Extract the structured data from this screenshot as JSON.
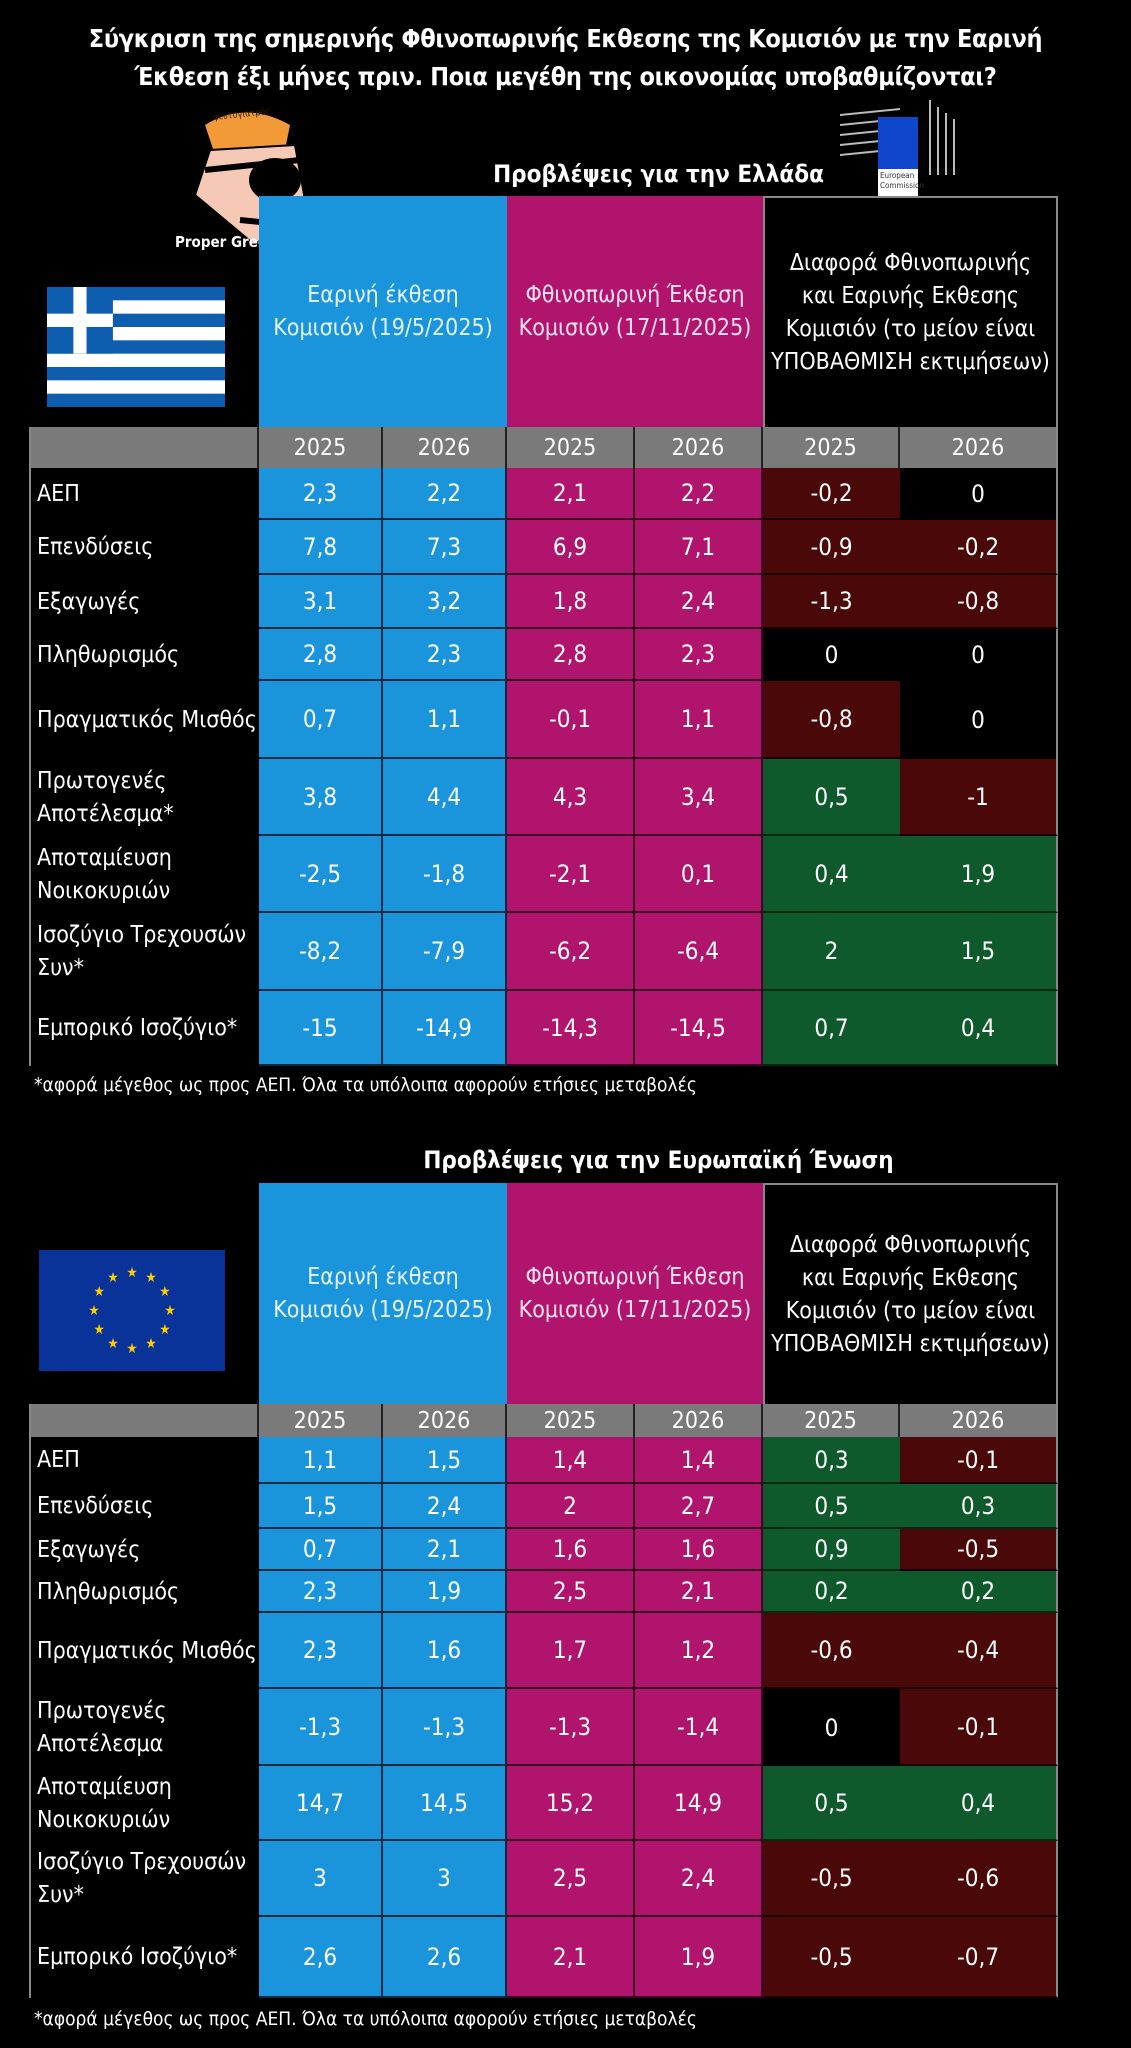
{
  "title": {
    "line1": "Σύγκριση της σημερινής Φθινοπωρινής Εκθεσης της Κομισιόν με την Εαρινή",
    "line2": "Έκθεση έξι μήνες πριν. Ποια μεγέθη της οικονομίας υποβαθμίζονται?"
  },
  "brand": {
    "caption": "Proper Greek Analyst",
    "hair_text": "ψευτογιατρός"
  },
  "ec_logo": {
    "line1": "European",
    "line2": "Commission",
    "color": "#0e47cb"
  },
  "colors": {
    "spring": "#1a95dc",
    "autumn": "#b0146c",
    "downgrade": "#4a0808",
    "upgrade": "#0f5a2c",
    "unchanged": "#000000",
    "year_row": "#7a7a7a"
  },
  "tables": [
    {
      "title": "Προβλέψεις για την Ελλάδα",
      "flag": "greece-flag",
      "headers": {
        "spring": "Εαρινή έκθεση Κομισιόν (19/5/2025)",
        "autumn": "Φθινοπωρινή Έκθεση Κομισιόν (17/11/2025)",
        "diff": "Διαφορά Φθινοπωρινής και Εαρινής Εκθεσης Κομισιόν (το μείον είναι ΥΠΟΒΑΘΜΙΣΗ εκτιμήσεων)"
      },
      "years": [
        "2025",
        "2026",
        "2025",
        "2026",
        "2025",
        "2026"
      ],
      "rows": [
        {
          "label": "ΑΕΠ",
          "values": [
            "2,3",
            "2,2",
            "2,1",
            "2,2",
            "-0,2",
            "0"
          ]
        },
        {
          "label": "Επενδύσεις",
          "values": [
            "7,8",
            "7,3",
            "6,9",
            "7,1",
            "-0,9",
            "-0,2"
          ]
        },
        {
          "label": "Εξαγωγές",
          "values": [
            "3,1",
            "3,2",
            "1,8",
            "2,4",
            "-1,3",
            "-0,8"
          ]
        },
        {
          "label": "Πληθωρισμός",
          "values": [
            "2,8",
            "2,3",
            "2,8",
            "2,3",
            "0",
            "0"
          ]
        },
        {
          "label": "Πραγματικός Μισθός",
          "values": [
            "0,7",
            "1,1",
            "-0,1",
            "1,1",
            "-0,8",
            "0"
          ]
        },
        {
          "label": "Πρωτογενές Αποτέλεσμα*",
          "values": [
            "3,8",
            "4,4",
            "4,3",
            "3,4",
            "0,5",
            "-1"
          ]
        },
        {
          "label": "Αποταμίευση Νοικοκυριών",
          "values": [
            "-2,5",
            "-1,8",
            "-2,1",
            "0,1",
            "0,4",
            "1,9"
          ]
        },
        {
          "label": "Ισοζύγιο Τρεχουσών Συν*",
          "values": [
            "-8,2",
            "-7,9",
            "-6,2",
            "-6,4",
            "2",
            "1,5"
          ]
        },
        {
          "label": "Εμπορικό Ισοζύγιο*",
          "values": [
            "-15",
            "-14,9",
            "-14,3",
            "-14,5",
            "0,7",
            "0,4"
          ]
        }
      ],
      "footnote": "*αφορά μέγεθος ως προς ΑΕΠ. Όλα τα υπόλοιπα αφορούν ετήσιες μεταβολές"
    },
    {
      "title": "Προβλέψεις για την Ευρωπαϊκή Ένωση",
      "flag": "eu-flag",
      "headers": {
        "spring": "Εαρινή έκθεση Κομισιόν (19/5/2025)",
        "autumn": "Φθινοπωρινή Έκθεση Κομισιόν (17/11/2025)",
        "diff": "Διαφορά Φθινοπωρινής και Εαρινής Εκθεσης Κομισιόν (το μείον είναι ΥΠΟΒΑΘΜΙΣΗ εκτιμήσεων)"
      },
      "years": [
        "2025",
        "2026",
        "2025",
        "2026",
        "2025",
        "2026"
      ],
      "rows": [
        {
          "label": "ΑΕΠ",
          "values": [
            "1,1",
            "1,5",
            "1,4",
            "1,4",
            "0,3",
            "-0,1"
          ]
        },
        {
          "label": "Επενδύσεις",
          "values": [
            "1,5",
            "2,4",
            "2",
            "2,7",
            "0,5",
            "0,3"
          ]
        },
        {
          "label": "Εξαγωγές",
          "values": [
            "0,7",
            "2,1",
            "1,6",
            "1,6",
            "0,9",
            "-0,5"
          ]
        },
        {
          "label": "Πληθωρισμός",
          "values": [
            "2,3",
            "1,9",
            "2,5",
            "2,1",
            "0,2",
            "0,2"
          ]
        },
        {
          "label": "Πραγματικός Μισθός",
          "values": [
            "2,3",
            "1,6",
            "1,7",
            "1,2",
            "-0,6",
            "-0,4"
          ]
        },
        {
          "label": "Πρωτογενές Αποτέλεσμα",
          "values": [
            "-1,3",
            "-1,3",
            "-1,3",
            "-1,4",
            "0",
            "-0,1"
          ]
        },
        {
          "label": "Αποταμίευση Νοικοκυριών",
          "values": [
            "14,7",
            "14,5",
            "15,2",
            "14,9",
            "0,5",
            "0,4"
          ]
        },
        {
          "label": "Ισοζύγιο Τρεχουσών Συν*",
          "values": [
            "3",
            "3",
            "2,5",
            "2,4",
            "-0,5",
            "-0,6"
          ]
        },
        {
          "label": "Εμπορικό Ισοζύγιο*",
          "values": [
            "2,6",
            "2,6",
            "2,1",
            "1,9",
            "-0,5",
            "-0,7"
          ]
        }
      ],
      "footnote": "*αφορά μέγεθος ως προς ΑΕΠ. Όλα τα υπόλοιπα αφορούν ετήσιες μεταβολές"
    }
  ]
}
